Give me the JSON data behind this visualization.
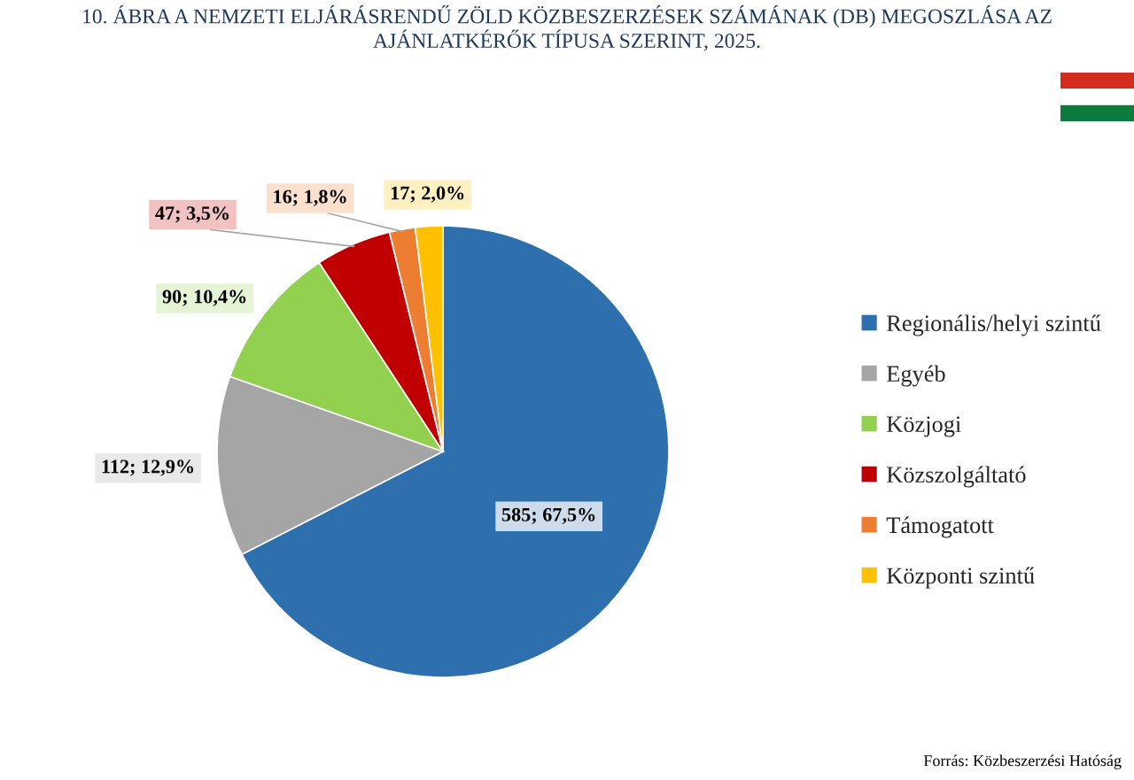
{
  "chart_data": {
    "type": "pie",
    "title": "10. ÁBRA A NEMZETI ELJÁRÁSRENDŰ ZÖLD KÖZBESZERZÉSEK SZÁMÁNAK (DB) MEGOSZLÁSA AZ AJÁNLATKÉRŐK TÍPUSA SZERINT, 2025.",
    "categories": [
      "Regionális/helyi szintű",
      "Egyéb",
      "Közjogi",
      "Közszolgáltató",
      "Támogatott",
      "Központi szintű"
    ],
    "values": [
      585,
      112,
      90,
      47,
      16,
      17
    ],
    "colors": [
      "#2e6fad",
      "#a5a5a5",
      "#92d050",
      "#c00000",
      "#ed7d31",
      "#ffc000"
    ],
    "value_labels": [
      "585; 67,5%",
      "112; 12,9%",
      "90; 10,4%",
      "47; 3,5%",
      "16; 1,8%",
      "17; 2,0%"
    ],
    "legend": "right",
    "annotations": [
      "Forrás: Közbeszerzési Hatóság"
    ]
  }
}
